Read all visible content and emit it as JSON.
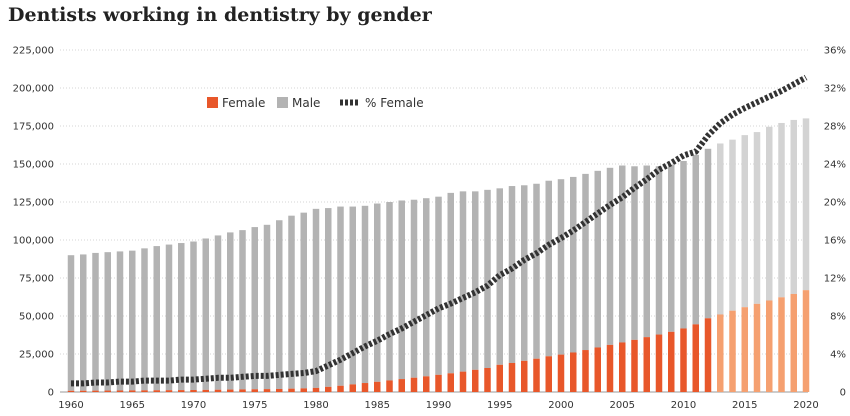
{
  "chart_data": {
    "type": "bar",
    "title": "Dentists working in dentistry by gender",
    "xlabel": "",
    "ylabel": "",
    "x": [
      1960,
      1961,
      1962,
      1963,
      1964,
      1965,
      1966,
      1967,
      1968,
      1969,
      1970,
      1971,
      1972,
      1973,
      1974,
      1975,
      1976,
      1977,
      1978,
      1979,
      1980,
      1981,
      1982,
      1983,
      1984,
      1985,
      1986,
      1987,
      1988,
      1989,
      1990,
      1991,
      1992,
      1993,
      1994,
      1995,
      1996,
      1997,
      1998,
      1999,
      2000,
      2001,
      2002,
      2003,
      2004,
      2005,
      2006,
      2007,
      2008,
      2009,
      2010,
      2011,
      2012,
      2013,
      2014,
      2015,
      2016,
      2017,
      2018,
      2019,
      2020
    ],
    "x_ticks": [
      1960,
      1965,
      1970,
      1975,
      1980,
      1985,
      1990,
      1995,
      2000,
      2005,
      2010,
      2015,
      2020
    ],
    "x_tick_labels": [
      "1960",
      "1965",
      "1970",
      "1975",
      "1980",
      "1985",
      "1990",
      "1995",
      "2000",
      "2005",
      "2010",
      "2015",
      "2020"
    ],
    "ylim": [
      0,
      225000
    ],
    "y_ticks": [
      0,
      25000,
      50000,
      75000,
      100000,
      125000,
      150000,
      175000,
      200000,
      225000
    ],
    "y_tick_labels": [
      "0",
      "25,000",
      "50,000",
      "75,000",
      "100,000",
      "125,000",
      "150,000",
      "175,000",
      "200,000",
      "225,000"
    ],
    "y2lim": [
      0,
      36
    ],
    "y2_ticks": [
      0,
      4,
      8,
      12,
      16,
      20,
      24,
      28,
      32,
      36
    ],
    "y2_tick_labels": [
      "0",
      "4%",
      "8%",
      "12%",
      "16%",
      "20%",
      "24%",
      "28%",
      "32%",
      "36%"
    ],
    "stacked": true,
    "projected_from": 2013,
    "grid": true,
    "legend_position": "top-left",
    "series": [
      {
        "name": "Female",
        "type": "bar",
        "color": "#e8572a",
        "projected_color": "#f5a070",
        "values": [
          800,
          850,
          900,
          950,
          1000,
          1050,
          1100,
          1150,
          1200,
          1250,
          1300,
          1400,
          1500,
          1600,
          1700,
          1800,
          1900,
          2000,
          2200,
          2400,
          2700,
          3400,
          4100,
          5000,
          5900,
          6700,
          7600,
          8500,
          9400,
          10300,
          11300,
          12300,
          13400,
          14600,
          15800,
          17900,
          19100,
          20500,
          21900,
          23500,
          24600,
          26000,
          27600,
          29300,
          31000,
          32600,
          34300,
          36100,
          37800,
          39600,
          41800,
          44500,
          48500,
          51000,
          53500,
          55800,
          58000,
          60200,
          62300,
          64500,
          67000
        ]
      },
      {
        "name": "Male",
        "type": "bar",
        "color": "#b3b3b3",
        "projected_color": "#d3d3d3",
        "values": [
          89200,
          89650,
          90600,
          91050,
          91500,
          91950,
          93400,
          94850,
          95800,
          96750,
          97700,
          99600,
          101500,
          103400,
          104800,
          106700,
          108100,
          111000,
          113800,
          115600,
          117800,
          117600,
          117900,
          117000,
          116600,
          117300,
          117400,
          117500,
          117100,
          117200,
          117200,
          118700,
          118600,
          117400,
          117200,
          116100,
          116400,
          115500,
          115100,
          115500,
          115400,
          115500,
          115900,
          116200,
          116500,
          116400,
          114200,
          112900,
          110700,
          109900,
          110200,
          111500,
          111500,
          112500,
          112500,
          113200,
          113000,
          114300,
          114700,
          114500,
          113000
        ]
      },
      {
        "name": "% Female",
        "type": "line",
        "axis": "y2",
        "color": "#333333",
        "values": [
          0.9,
          0.9,
          1.0,
          1.0,
          1.1,
          1.1,
          1.2,
          1.2,
          1.2,
          1.3,
          1.3,
          1.4,
          1.5,
          1.5,
          1.6,
          1.7,
          1.7,
          1.8,
          1.9,
          2.0,
          2.2,
          2.8,
          3.4,
          4.1,
          4.8,
          5.4,
          6.1,
          6.7,
          7.4,
          8.1,
          8.8,
          9.3,
          9.9,
          10.5,
          11.2,
          12.3,
          13.0,
          13.9,
          14.6,
          15.5,
          16.2,
          17.0,
          17.9,
          18.8,
          19.7,
          20.5,
          21.5,
          22.4,
          23.4,
          24.1,
          24.9,
          25.3,
          27.0,
          28.3,
          29.2,
          29.9,
          30.5,
          31.1,
          31.7,
          32.4,
          33.1
        ]
      }
    ]
  }
}
